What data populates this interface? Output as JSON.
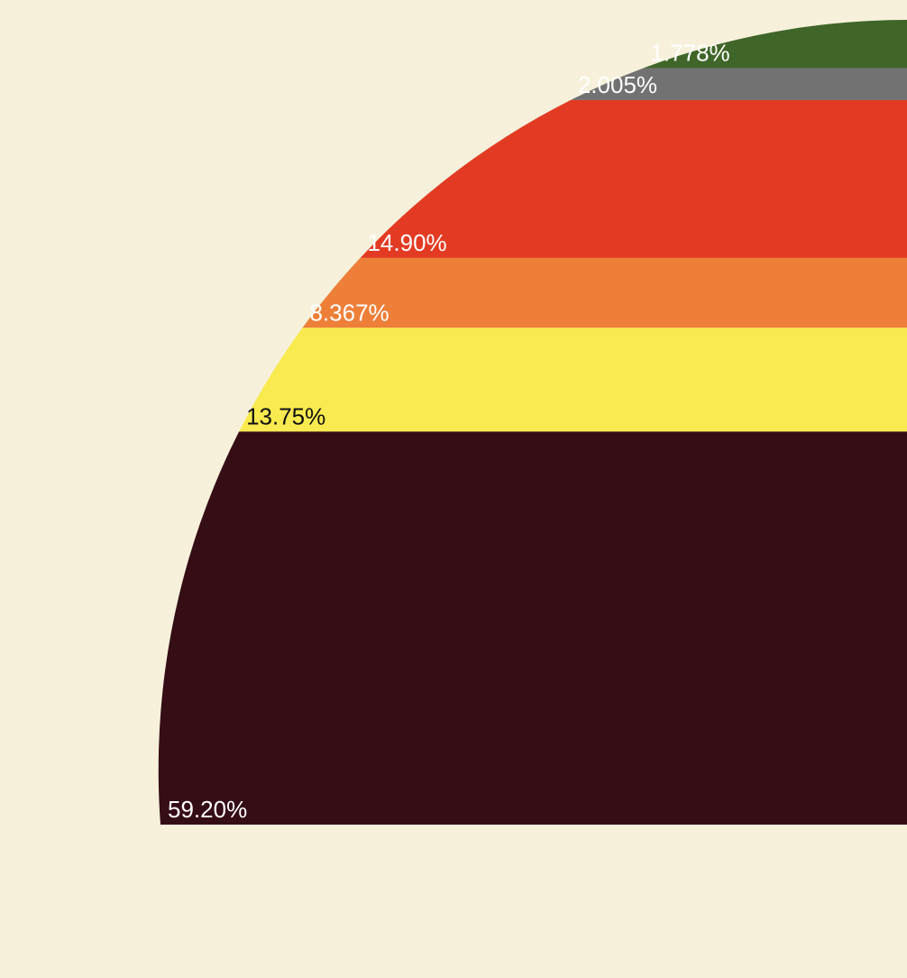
{
  "chart_data": {
    "type": "area",
    "shape": "quarter-circle stacked bands",
    "categories": [
      "1.778%",
      "2.005%",
      "14.90%",
      "8.367%",
      "13.75%",
      "59.20%"
    ],
    "values": [
      1.778,
      2.005,
      14.9,
      8.367,
      13.75,
      59.2
    ],
    "series": [
      {
        "label": "1.778%",
        "value": 1.778,
        "color": "#3f6628",
        "text_color": "#ffffff"
      },
      {
        "label": "2.005%",
        "value": 2.005,
        "color": "#727272",
        "text_color": "#ffffff"
      },
      {
        "label": "14.90%",
        "value": 14.9,
        "color": "#e33b23",
        "text_color": "#ffffff"
      },
      {
        "label": "8.367%",
        "value": 8.367,
        "color": "#ee7f38",
        "text_color": "#ffffff"
      },
      {
        "label": "13.75%",
        "value": 13.75,
        "color": "#f9ea4f",
        "text_color": "#111111"
      },
      {
        "label": "59.20%",
        "value": 59.2,
        "color": "#350d15",
        "text_color": "#ffffff"
      }
    ],
    "order": "top-to-bottom",
    "legend": "none",
    "grid": false
  },
  "colors": {
    "background": "#f7f1dc"
  }
}
